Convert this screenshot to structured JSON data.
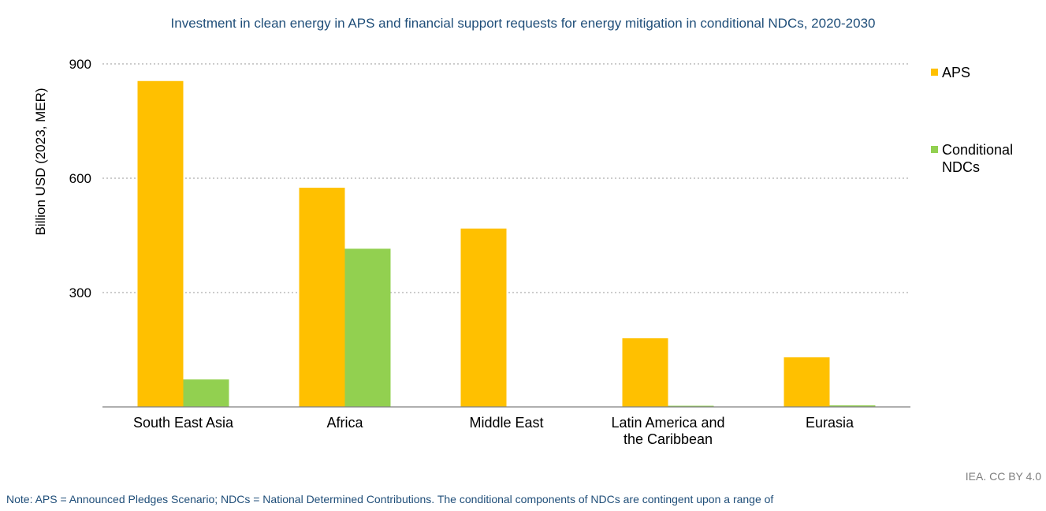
{
  "chart_data": {
    "type": "bar",
    "title": "Investment in clean energy in APS and financial support requests for energy mitigation in conditional NDCs, 2020-2030",
    "ylabel": "Billion USD (2023, MER)",
    "xlabel": "",
    "categories": [
      [
        "South East Asia"
      ],
      [
        "Africa"
      ],
      [
        "Middle East"
      ],
      [
        "Latin America and",
        "the Caribbean"
      ],
      [
        "Eurasia"
      ]
    ],
    "series": [
      {
        "name": "APS",
        "color": "#FFC000",
        "values": [
          855,
          575,
          468,
          180,
          130
        ]
      },
      {
        "name": "Conditional NDCs",
        "legend_lines": [
          "Conditional",
          "NDCs"
        ],
        "color": "#92D050",
        "values": [
          72,
          415,
          0,
          3,
          4
        ]
      }
    ],
    "ylim": [
      0,
      900
    ],
    "yticks": [
      "300",
      "600",
      "900"
    ],
    "grid": true,
    "legend_position": "right"
  },
  "footer": {
    "source": "IEA. CC BY 4.0",
    "note": "Note: APS = Announced Pledges Scenario; NDCs = National Determined Contributions. The conditional components of NDCs are contingent upon a range of"
  }
}
